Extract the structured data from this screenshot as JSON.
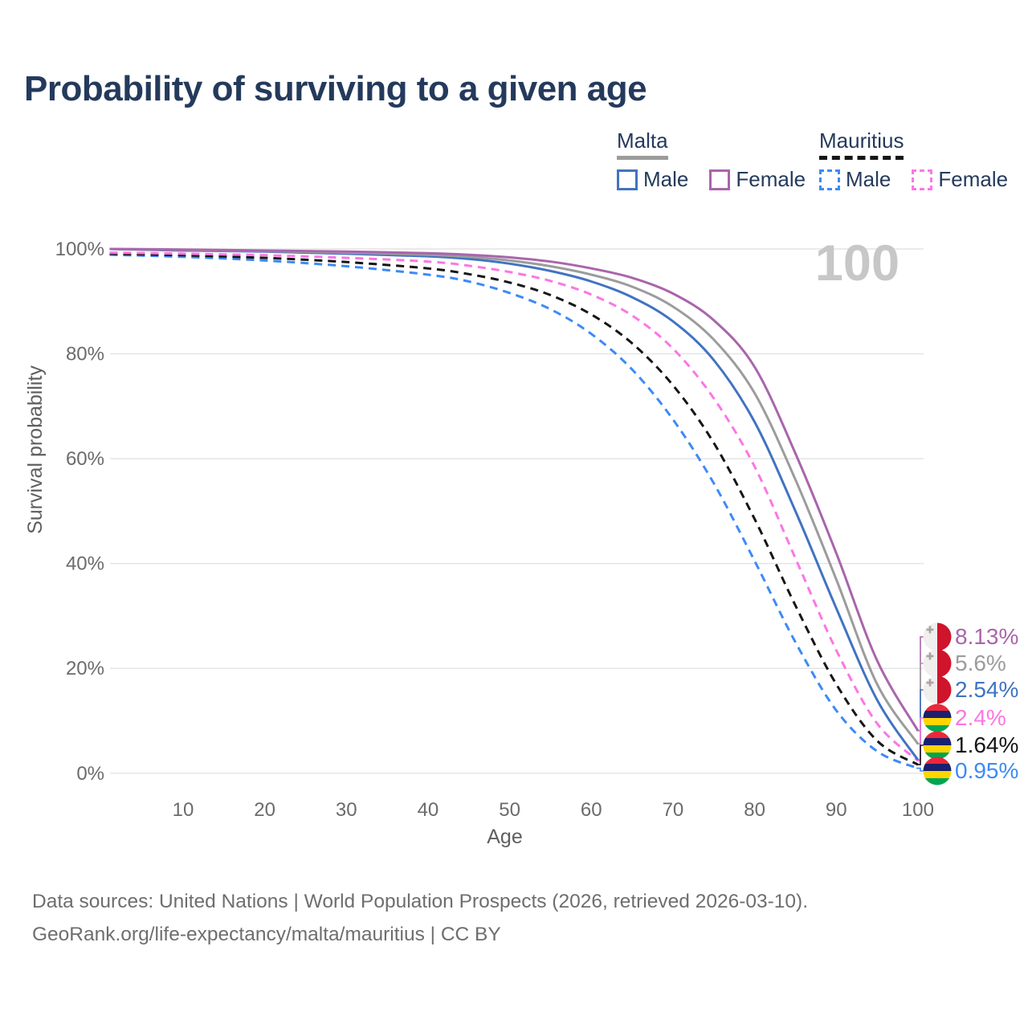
{
  "title": "Probability of surviving to a given age",
  "watermark": "100",
  "legend": {
    "groups": [
      {
        "name": "Malta",
        "line_style": "solid",
        "line_color": "#9c9c9c",
        "items": [
          {
            "label": "Male",
            "color": "#4173c2",
            "dashed": false
          },
          {
            "label": "Female",
            "color": "#a965ac",
            "dashed": false
          }
        ]
      },
      {
        "name": "Mauritius",
        "line_style": "dashed",
        "line_color": "#161616",
        "items": [
          {
            "label": "Male",
            "color": "#3d8af7",
            "dashed": true
          },
          {
            "label": "Female",
            "color": "#fb77e3",
            "dashed": true
          }
        ]
      }
    ]
  },
  "chart_data": {
    "type": "line",
    "title": "Probability of surviving to a given age",
    "xlabel": "Age",
    "ylabel": "Survival probability",
    "xlim": [
      1,
      100
    ],
    "ylim": [
      0,
      100
    ],
    "grid": true,
    "x_ticks": [
      10,
      20,
      30,
      40,
      50,
      60,
      70,
      80,
      90,
      100
    ],
    "y_ticks": [
      {
        "value": 0,
        "label": "0%"
      },
      {
        "value": 20,
        "label": "20%"
      },
      {
        "value": 40,
        "label": "40%"
      },
      {
        "value": 60,
        "label": "60%"
      },
      {
        "value": 80,
        "label": "80%"
      },
      {
        "value": 100,
        "label": "100%"
      }
    ],
    "x": [
      1,
      10,
      20,
      30,
      40,
      45,
      50,
      55,
      60,
      65,
      70,
      75,
      80,
      85,
      90,
      95,
      100
    ],
    "series": [
      {
        "name": "Mauritius Male",
        "country": "Mauritius",
        "sex": "Male",
        "color": "#3d8af7",
        "dashed": true,
        "values": [
          98.9,
          98.5,
          97.8,
          96.7,
          95.1,
          93.8,
          91.6,
          88.5,
          83.8,
          77.0,
          67.5,
          55.3,
          40.5,
          25.0,
          12.0,
          4.2,
          0.95
        ]
      },
      {
        "name": "Mauritius Both sexes",
        "country": "Mauritius",
        "sex": "Both",
        "color": "#161616",
        "dashed": true,
        "values": [
          99.1,
          98.8,
          98.3,
          97.5,
          96.3,
          95.2,
          93.6,
          91.2,
          87.5,
          82.0,
          74.0,
          63.0,
          48.5,
          32.0,
          17.0,
          6.2,
          1.64
        ]
      },
      {
        "name": "Mauritius Female",
        "country": "Mauritius",
        "sex": "Female",
        "color": "#fb77e3",
        "dashed": true,
        "values": [
          99.3,
          99.1,
          98.8,
          98.3,
          97.6,
          96.8,
          95.6,
          93.9,
          91.3,
          87.3,
          81.0,
          71.5,
          58.5,
          41.0,
          23.5,
          9.5,
          2.4
        ]
      },
      {
        "name": "Malta Male",
        "country": "Malta",
        "sex": "Male",
        "color": "#4173c2",
        "dashed": false,
        "values": [
          100,
          99.7,
          99.5,
          99.1,
          98.6,
          98.1,
          97.2,
          95.8,
          93.8,
          90.8,
          86.2,
          78.8,
          67.0,
          50.0,
          31.5,
          14.0,
          2.54
        ]
      },
      {
        "name": "Malta Both sexes",
        "country": "Malta",
        "sex": "Both",
        "color": "#9c9c9c",
        "dashed": false,
        "values": [
          100,
          99.8,
          99.6,
          99.3,
          98.9,
          98.5,
          97.8,
          96.7,
          95.1,
          92.8,
          89.0,
          82.7,
          72.5,
          56.0,
          37.0,
          17.0,
          5.6
        ]
      },
      {
        "name": "Malta Female",
        "country": "Malta",
        "sex": "Female",
        "color": "#a965ac",
        "dashed": false,
        "values": [
          100,
          99.9,
          99.7,
          99.5,
          99.2,
          98.9,
          98.4,
          97.6,
          96.3,
          94.5,
          91.5,
          86.4,
          77.5,
          61.0,
          42.0,
          21.5,
          8.13
        ]
      }
    ],
    "hover_age": "100"
  },
  "end_labels": [
    {
      "value": "8.13%",
      "series": "Malta Female",
      "flag": "malta",
      "color": "#a965ac"
    },
    {
      "value": "5.6%",
      "series": "Malta Both sexes",
      "flag": "malta",
      "color": "#9c9c9c"
    },
    {
      "value": "2.54%",
      "series": "Malta Male",
      "flag": "malta",
      "color": "#4173c2"
    },
    {
      "value": "2.4%",
      "series": "Mauritius Female",
      "flag": "mauritius",
      "color": "#fb77e3"
    },
    {
      "value": "1.64%",
      "series": "Mauritius Both sexes",
      "flag": "mauritius",
      "color": "#161616"
    },
    {
      "value": "0.95%",
      "series": "Mauritius Male",
      "flag": "mauritius",
      "color": "#3d8af7"
    }
  ],
  "footer": {
    "line1": "Data sources: United Nations | World Population Prospects (2026, retrieved 2026-03-10).",
    "line2": "GeoRank.org/life-expectancy/malta/mauritius | CC BY"
  }
}
